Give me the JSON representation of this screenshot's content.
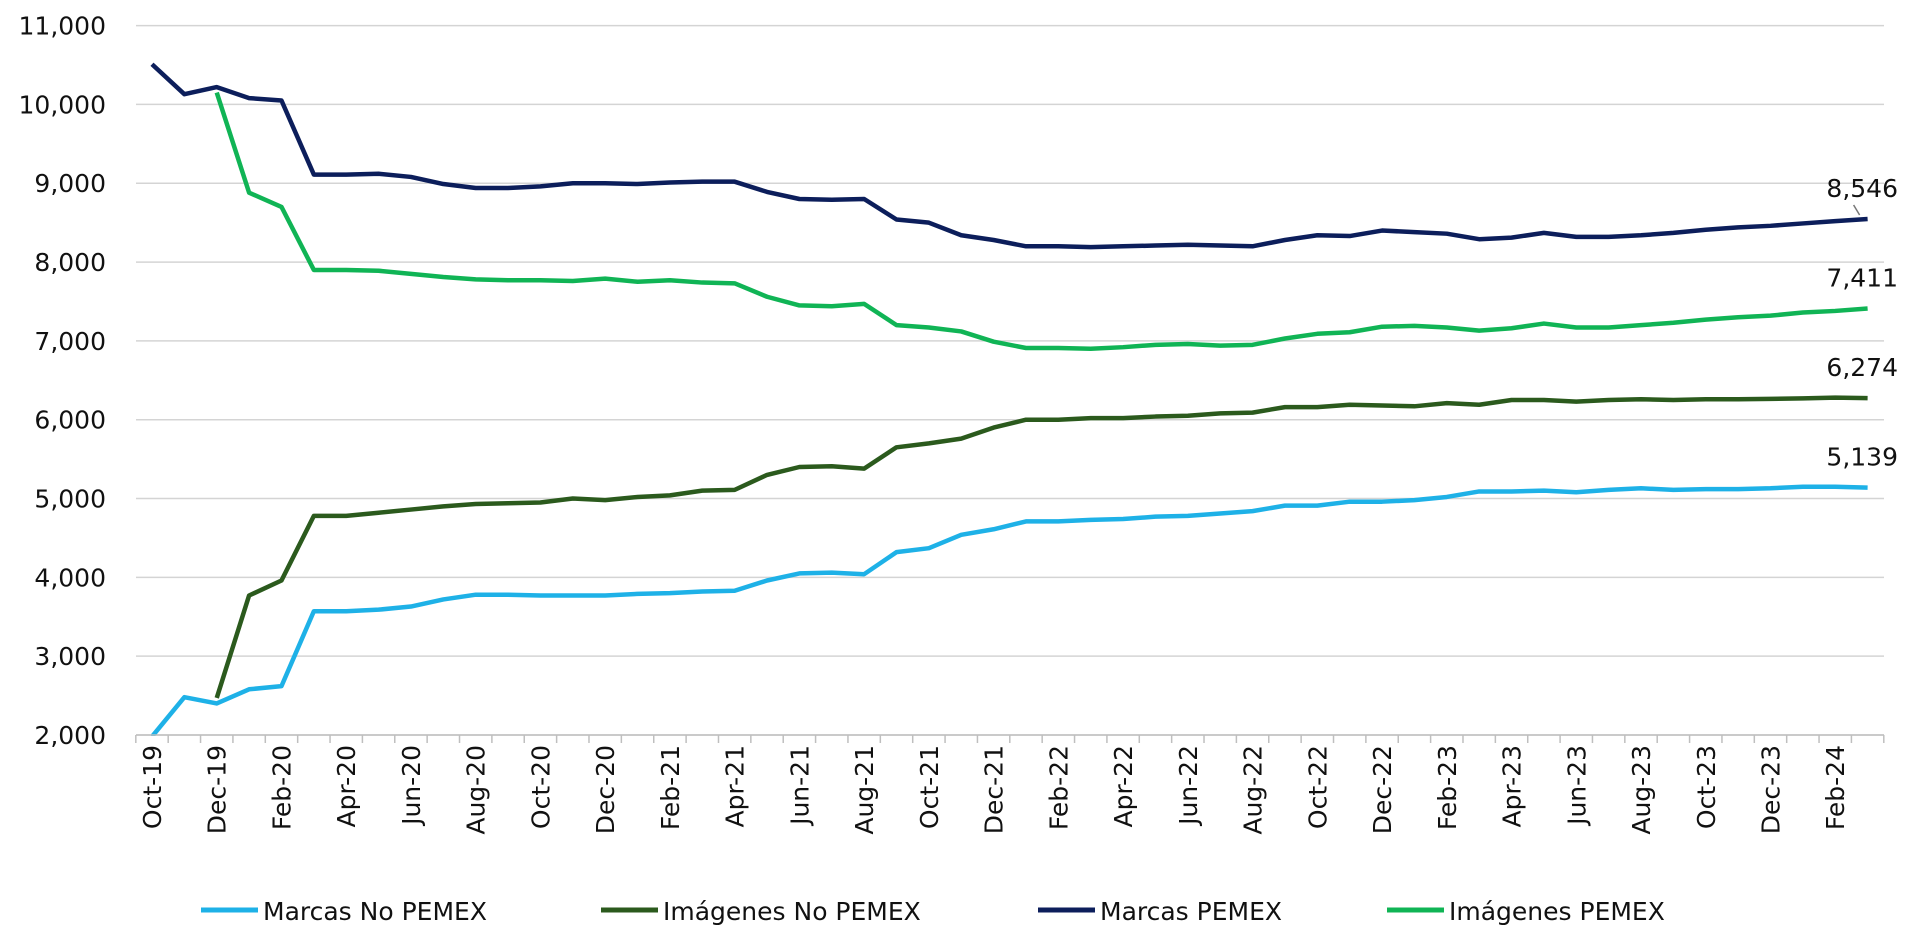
{
  "chart_data": {
    "type": "line",
    "categories": [
      "Oct-19",
      null,
      "Dec-19",
      null,
      "Feb-20",
      null,
      "Apr-20",
      null,
      "Jun-20",
      null,
      "Aug-20",
      null,
      "Oct-20",
      null,
      "Dec-20",
      null,
      "Feb-21",
      null,
      "Apr-21",
      null,
      "Jun-21",
      null,
      "Aug-21",
      null,
      "Oct-21",
      null,
      "Dec-21",
      null,
      "Feb-22",
      null,
      "Apr-22",
      null,
      "Jun-22",
      null,
      "Aug-22",
      null,
      "Oct-22",
      null,
      "Dec-22",
      null,
      "Feb-23",
      null,
      "Apr-23",
      null,
      "Jun-23",
      null,
      "Aug-23",
      null,
      "Oct-23",
      null,
      "Dec-23",
      null,
      "Feb-24",
      null
    ],
    "ylim": [
      2000,
      11000
    ],
    "yticks": [
      {
        "value": 2000,
        "label": "2,000"
      },
      {
        "value": 3000,
        "label": "3,000"
      },
      {
        "value": 4000,
        "label": "4,000"
      },
      {
        "value": 5000,
        "label": "5,000"
      },
      {
        "value": 6000,
        "label": "6,000"
      },
      {
        "value": 7000,
        "label": "7,000"
      },
      {
        "value": 8000,
        "label": "8,000"
      },
      {
        "value": 9000,
        "label": "9,000"
      },
      {
        "value": 10000,
        "label": "10,000"
      },
      {
        "value": 11000,
        "label": "11,000"
      }
    ],
    "grid": true,
    "legend": "bottom",
    "series": [
      {
        "name": "Marcas No PEMEX",
        "color": "#1eb1e7",
        "values": [
          1980,
          2480,
          2400,
          2580,
          2620,
          3570,
          3570,
          3590,
          3630,
          3720,
          3780,
          3780,
          3770,
          3770,
          3770,
          3790,
          3800,
          3820,
          3830,
          3960,
          4050,
          4060,
          4040,
          4320,
          4370,
          4540,
          4610,
          4710,
          4710,
          4730,
          4740,
          4770,
          4780,
          4810,
          4840,
          4910,
          4910,
          4960,
          4960,
          4980,
          5020,
          5090,
          5090,
          5100,
          5080,
          5110,
          5130,
          5110,
          5120,
          5120,
          5130,
          5150,
          5150,
          5139
        ],
        "value_labels": [
          null,
          null,
          null,
          null,
          null,
          null,
          null,
          null,
          null,
          null,
          null,
          null,
          null,
          null,
          null,
          null,
          null,
          null,
          null,
          null,
          null,
          null,
          null,
          null,
          null,
          null,
          null,
          null,
          null,
          null,
          null,
          null,
          null,
          null,
          null,
          null,
          null,
          null,
          null,
          null,
          null,
          null,
          null,
          null,
          null,
          null,
          null,
          null,
          null,
          null,
          null,
          null,
          null,
          "5,139"
        ]
      },
      {
        "name": "Imágenes No PEMEX",
        "color": "#2b5a1d",
        "values": [
          null,
          null,
          2470,
          3770,
          3960,
          4780,
          4780,
          4820,
          4860,
          4900,
          4930,
          4940,
          4950,
          5000,
          4980,
          5020,
          5040,
          5100,
          5110,
          5300,
          5400,
          5410,
          5380,
          5650,
          5700,
          5760,
          5900,
          6000,
          6000,
          6020,
          6020,
          6040,
          6050,
          6080,
          6090,
          6160,
          6160,
          6190,
          6180,
          6170,
          6210,
          6190,
          6250,
          6250,
          6230,
          6250,
          6260,
          6250,
          6260,
          6260,
          6265,
          6270,
          6280,
          6274
        ],
        "value_labels": [
          null,
          null,
          null,
          null,
          null,
          null,
          null,
          null,
          null,
          null,
          null,
          null,
          null,
          null,
          null,
          null,
          null,
          null,
          null,
          null,
          null,
          null,
          null,
          null,
          null,
          null,
          null,
          null,
          null,
          null,
          null,
          null,
          null,
          null,
          null,
          null,
          null,
          null,
          null,
          null,
          null,
          null,
          null,
          null,
          null,
          null,
          null,
          null,
          null,
          null,
          null,
          null,
          null,
          "6,274"
        ]
      },
      {
        "name": "Marcas PEMEX",
        "color": "#0c1e5b",
        "values": [
          10510,
          10130,
          10220,
          10080,
          10050,
          9110,
          9110,
          9120,
          9080,
          8990,
          8940,
          8940,
          8960,
          9000,
          9000,
          8990,
          9010,
          9020,
          9020,
          8890,
          8800,
          8790,
          8800,
          8540,
          8500,
          8340,
          8280,
          8200,
          8200,
          8190,
          8200,
          8210,
          8220,
          8210,
          8200,
          8280,
          8340,
          8330,
          8400,
          8380,
          8360,
          8290,
          8310,
          8370,
          8320,
          8320,
          8340,
          8370,
          8410,
          8440,
          8460,
          8490,
          8520,
          8546
        ],
        "value_labels": [
          null,
          null,
          null,
          null,
          null,
          null,
          null,
          null,
          null,
          null,
          null,
          null,
          null,
          null,
          null,
          null,
          null,
          null,
          null,
          null,
          null,
          null,
          null,
          null,
          null,
          null,
          null,
          null,
          null,
          null,
          null,
          null,
          null,
          null,
          null,
          null,
          null,
          null,
          null,
          null,
          null,
          null,
          null,
          null,
          null,
          null,
          null,
          null,
          null,
          null,
          null,
          null,
          null,
          "8,546"
        ]
      },
      {
        "name": "Imágenes PEMEX",
        "color": "#10b455",
        "values": [
          null,
          null,
          10150,
          8880,
          8700,
          7900,
          7900,
          7890,
          7850,
          7810,
          7780,
          7770,
          7770,
          7760,
          7790,
          7750,
          7770,
          7740,
          7730,
          7560,
          7450,
          7440,
          7470,
          7200,
          7170,
          7120,
          6990,
          6910,
          6910,
          6900,
          6920,
          6950,
          6960,
          6940,
          6950,
          7030,
          7090,
          7110,
          7180,
          7190,
          7170,
          7130,
          7160,
          7220,
          7170,
          7170,
          7200,
          7230,
          7270,
          7300,
          7320,
          7360,
          7380,
          7411
        ],
        "value_labels": [
          null,
          null,
          null,
          null,
          null,
          null,
          null,
          null,
          null,
          null,
          null,
          null,
          null,
          null,
          null,
          null,
          null,
          null,
          null,
          null,
          null,
          null,
          null,
          null,
          null,
          null,
          null,
          null,
          null,
          null,
          null,
          null,
          null,
          null,
          null,
          null,
          null,
          null,
          null,
          null,
          null,
          null,
          null,
          null,
          null,
          null,
          null,
          null,
          null,
          null,
          null,
          null,
          null,
          "7,411"
        ]
      }
    ]
  }
}
